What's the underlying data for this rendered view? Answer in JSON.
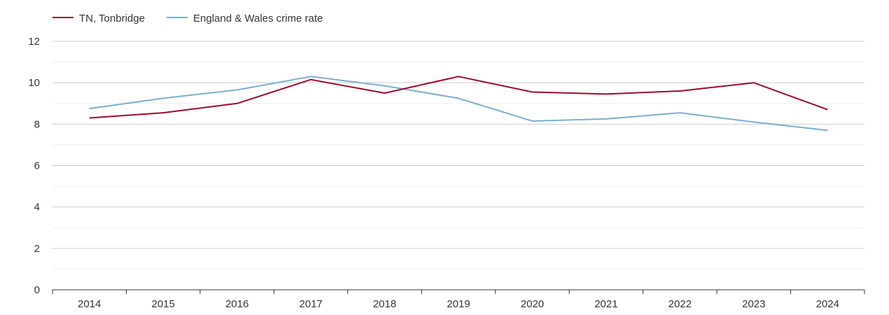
{
  "chart_data": {
    "type": "line",
    "title": "",
    "xlabel": "",
    "ylabel": "",
    "categories": [
      "2014",
      "2015",
      "2016",
      "2017",
      "2018",
      "2019",
      "2020",
      "2021",
      "2022",
      "2023",
      "2024"
    ],
    "ylim": [
      0,
      12
    ],
    "y_ticks": [
      "0",
      "2",
      "4",
      "6",
      "8",
      "10",
      "12"
    ],
    "grid": true,
    "legend_position": "top-left",
    "series": [
      {
        "name": "TN, Tonbridge",
        "color": "#9b0a2e",
        "values": [
          8.3,
          8.55,
          9.0,
          10.15,
          9.5,
          10.3,
          9.55,
          9.45,
          9.6,
          10.0,
          8.7
        ]
      },
      {
        "name": "England & Wales crime rate",
        "color": "#7aaecf",
        "values": [
          8.75,
          9.25,
          9.65,
          10.3,
          9.85,
          9.25,
          8.15,
          8.25,
          8.55,
          8.1,
          7.7
        ]
      }
    ]
  }
}
